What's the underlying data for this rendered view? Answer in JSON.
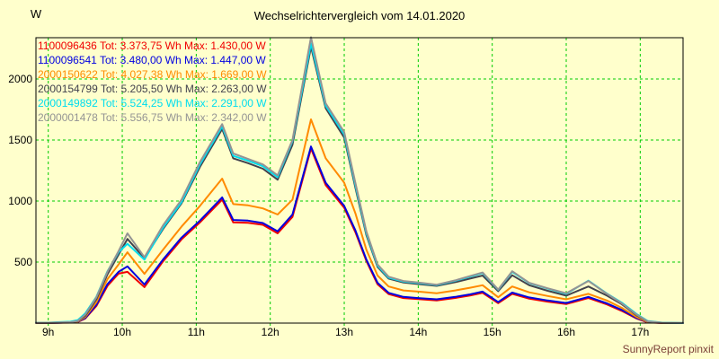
{
  "title": "Wechselrichtervergleich vom 14.01.2020",
  "y_axis_unit": "W",
  "footer": "SunnyReport pinxit",
  "colors": {
    "background": "#FFFFCC",
    "grid": "#00CC00",
    "axis": "#000000",
    "footer_text": "#7B4038"
  },
  "chart_data": {
    "type": "line",
    "title": "Wechselrichtervergleich vom 14.01.2020",
    "xlabel": "",
    "ylabel": "W",
    "grid": true,
    "legend_position": "top-left",
    "ylim": [
      0,
      2338
    ],
    "xlim": [
      8.84,
      17.58
    ],
    "y_ticks": [
      {
        "value": 500,
        "label": "500"
      },
      {
        "value": 1000,
        "label": "1000"
      },
      {
        "value": 1500,
        "label": "1500"
      },
      {
        "value": 2000,
        "label": "2000"
      }
    ],
    "x_ticks": [
      {
        "value": 9,
        "label": "9h"
      },
      {
        "value": 10,
        "label": "10h"
      },
      {
        "value": 11,
        "label": "11h"
      },
      {
        "value": 12,
        "label": "12h"
      },
      {
        "value": 13,
        "label": "13h"
      },
      {
        "value": 14,
        "label": "14h"
      },
      {
        "value": 15,
        "label": "15h"
      },
      {
        "value": 16,
        "label": "16h"
      },
      {
        "value": 17,
        "label": "17h"
      }
    ],
    "x": [
      9.0,
      9.15,
      9.3,
      9.4,
      9.5,
      9.65,
      9.8,
      9.95,
      10.07,
      10.3,
      10.55,
      10.8,
      11.05,
      11.35,
      11.5,
      11.7,
      11.9,
      12.1,
      12.3,
      12.55,
      12.75,
      13.0,
      13.15,
      13.3,
      13.45,
      13.6,
      13.8,
      14.0,
      14.25,
      14.5,
      14.7,
      14.87,
      15.08,
      15.27,
      15.5,
      15.75,
      16.0,
      16.3,
      16.55,
      16.75,
      16.95,
      17.1,
      17.3,
      17.55
    ],
    "series": [
      {
        "name": "1100096436",
        "total_wh": "3.373,75",
        "max_w": "1.430,00",
        "legend": "1100096436 Tot: 3.373,75 Wh Max: 1.430,00 W",
        "color": "#F00000",
        "values": [
          2,
          3,
          4,
          9,
          38,
          140,
          305,
          405,
          420,
          295,
          505,
          685,
          825,
          1012,
          825,
          822,
          805,
          735,
          870,
          1430,
          1130,
          945,
          745,
          508,
          318,
          238,
          205,
          196,
          186,
          206,
          226,
          248,
          163,
          240,
          200,
          176,
          156,
          206,
          153,
          100,
          38,
          5,
          1,
          0
        ]
      },
      {
        "name": "1100096541",
        "total_wh": "3.480,00",
        "max_w": "1.447,00",
        "legend": "1100096541 Tot: 3.480,00 Wh Max: 1.447,00 W",
        "color": "#0000E0",
        "values": [
          2,
          3,
          5,
          10,
          42,
          150,
          320,
          420,
          465,
          316,
          520,
          700,
          840,
          1030,
          845,
          840,
          820,
          752,
          890,
          1447,
          1150,
          960,
          760,
          520,
          330,
          248,
          215,
          205,
          195,
          215,
          235,
          258,
          172,
          250,
          210,
          185,
          165,
          215,
          162,
          108,
          42,
          7,
          1,
          0
        ]
      },
      {
        "name": "2000150622",
        "total_wh": "4.027,38",
        "max_w": "1.669,00",
        "legend": "2000150622 Tot: 4.027,38 Wh Max: 1.669,00 W",
        "color": "#FF8A00",
        "values": [
          2,
          4,
          6,
          12,
          50,
          170,
          360,
          480,
          580,
          404,
          600,
          790,
          960,
          1184,
          975,
          965,
          940,
          890,
          1010,
          1669,
          1350,
          1150,
          900,
          600,
          390,
          300,
          268,
          258,
          245,
          268,
          290,
          310,
          212,
          300,
          252,
          222,
          195,
          240,
          185,
          125,
          50,
          9,
          1,
          0
        ]
      },
      {
        "name": "2000154799",
        "total_wh": "5.205,50",
        "max_w": "2.263,00",
        "legend": "2000154799 Tot: 5.205,50 Wh Max: 2.263,00 W",
        "color": "#42424E",
        "values": [
          2,
          4,
          7,
          15,
          60,
          195,
          400,
          560,
          690,
          530,
          770,
          980,
          1280,
          1590,
          1350,
          1310,
          1265,
          1175,
          1460,
          2263,
          1760,
          1520,
          1110,
          720,
          460,
          365,
          332,
          320,
          305,
          335,
          365,
          390,
          262,
          392,
          310,
          265,
          225,
          300,
          225,
          155,
          65,
          13,
          2,
          0
        ]
      },
      {
        "name": "2000149892",
        "total_wh": "5.524,25",
        "max_w": "2.291,00",
        "legend": "2000149892 Tot: 5.524,25 Wh Max: 2.291,00 W",
        "color": "#00DDEE",
        "values": [
          4,
          8,
          12,
          25,
          80,
          215,
          425,
          580,
          650,
          520,
          780,
          990,
          1300,
          1610,
          1370,
          1330,
          1285,
          1195,
          1490,
          2291,
          1780,
          1545,
          1130,
          735,
          470,
          372,
          340,
          328,
          312,
          346,
          380,
          410,
          272,
          420,
          328,
          282,
          240,
          348,
          242,
          168,
          75,
          18,
          4,
          2
        ]
      },
      {
        "name": "2000001478",
        "total_wh": "5.556,75",
        "max_w": "2.342,00",
        "legend": "2000001478 Tot: 5.556,75 Wh Max: 2.342,00 W",
        "color": "#949494",
        "values": [
          3,
          5,
          8,
          18,
          70,
          210,
          420,
          590,
          735,
          540,
          800,
          1010,
          1320,
          1630,
          1390,
          1345,
          1300,
          1210,
          1500,
          2342,
          1800,
          1565,
          1150,
          750,
          480,
          380,
          345,
          332,
          315,
          350,
          385,
          415,
          275,
          425,
          330,
          285,
          245,
          345,
          240,
          162,
          70,
          15,
          3,
          2
        ]
      }
    ]
  }
}
